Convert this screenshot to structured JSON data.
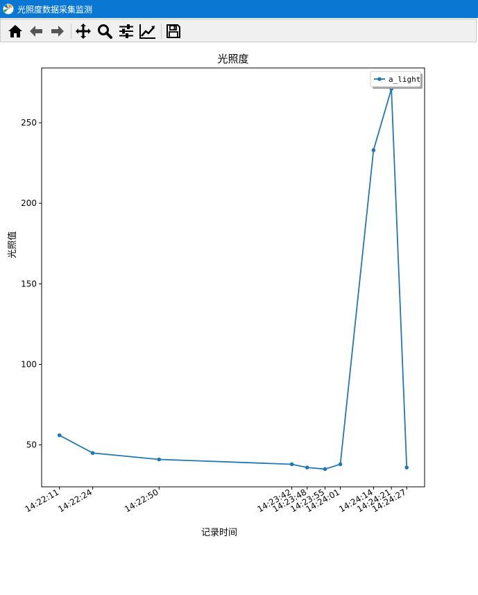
{
  "window": {
    "title": "光照度数据采集监测",
    "icon": "matplotlib-icon"
  },
  "toolbar": {
    "buttons": [
      {
        "name": "home-icon",
        "label": "Home"
      },
      {
        "name": "back-icon",
        "label": "Back"
      },
      {
        "name": "forward-icon",
        "label": "Forward"
      },
      {
        "name": "pan-icon",
        "label": "Pan"
      },
      {
        "name": "zoom-icon",
        "label": "Zoom"
      },
      {
        "name": "configure-subplots-icon",
        "label": "Subplots"
      },
      {
        "name": "edit-axis-icon",
        "label": "Customize"
      },
      {
        "name": "save-icon",
        "label": "Save"
      }
    ]
  },
  "chart_data": {
    "type": "line",
    "title": "光照度",
    "xlabel": "记录时间",
    "ylabel": "光照值",
    "x": [
      "14:22:11",
      "14:22:24",
      "14:22:50",
      "14:23:42",
      "14:23:48",
      "14:23:55",
      "14:24:01",
      "14:24:14",
      "14:24:21",
      "14:24:27"
    ],
    "x_seconds": [
      0,
      13,
      39,
      91,
      97,
      104,
      110,
      123,
      130,
      136
    ],
    "series": [
      {
        "name": "a_light",
        "values": [
          56,
          45,
          41,
          38,
          36,
          35,
          38,
          233,
          271,
          36
        ],
        "color": "#1f77b4",
        "marker": "circle"
      }
    ],
    "ylim": [
      24,
      284
    ],
    "yticks": [
      50,
      100,
      150,
      200,
      250
    ],
    "grid": false,
    "legend": "top-right"
  }
}
